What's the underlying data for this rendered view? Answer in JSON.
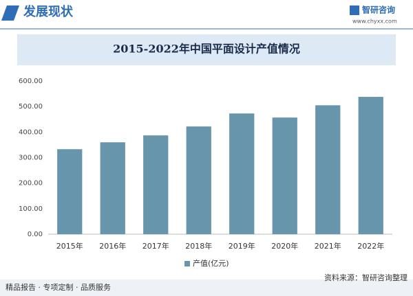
{
  "header": {
    "section": "发展现状",
    "brand": "智研咨询",
    "url": "www.chyxx.com"
  },
  "chart_data": {
    "type": "bar",
    "title": "2015-2022年中国平面设计产值情况",
    "categories": [
      "2015年",
      "2016年",
      "2017年",
      "2018年",
      "2019年",
      "2020年",
      "2021年",
      "2022年"
    ],
    "series": [
      {
        "name": "产值(亿元)",
        "color": "#6795ab",
        "values": [
          333,
          360,
          387,
          422,
          473,
          457,
          505,
          538
        ]
      }
    ],
    "ylim": [
      0,
      600
    ],
    "yticks": [
      {
        "value": 0,
        "label": "0.00"
      },
      {
        "value": 100,
        "label": "100.00"
      },
      {
        "value": 200,
        "label": "200.00"
      },
      {
        "value": 300,
        "label": "300.00"
      },
      {
        "value": 400,
        "label": "400.00"
      },
      {
        "value": 500,
        "label": "500.00"
      },
      {
        "value": 600,
        "label": "600.00"
      }
    ],
    "grid": false,
    "legend": "bottom",
    "source": "资料来源：智研咨询整理"
  },
  "footer": "精品报告 · 专项定制 · 品质服务"
}
